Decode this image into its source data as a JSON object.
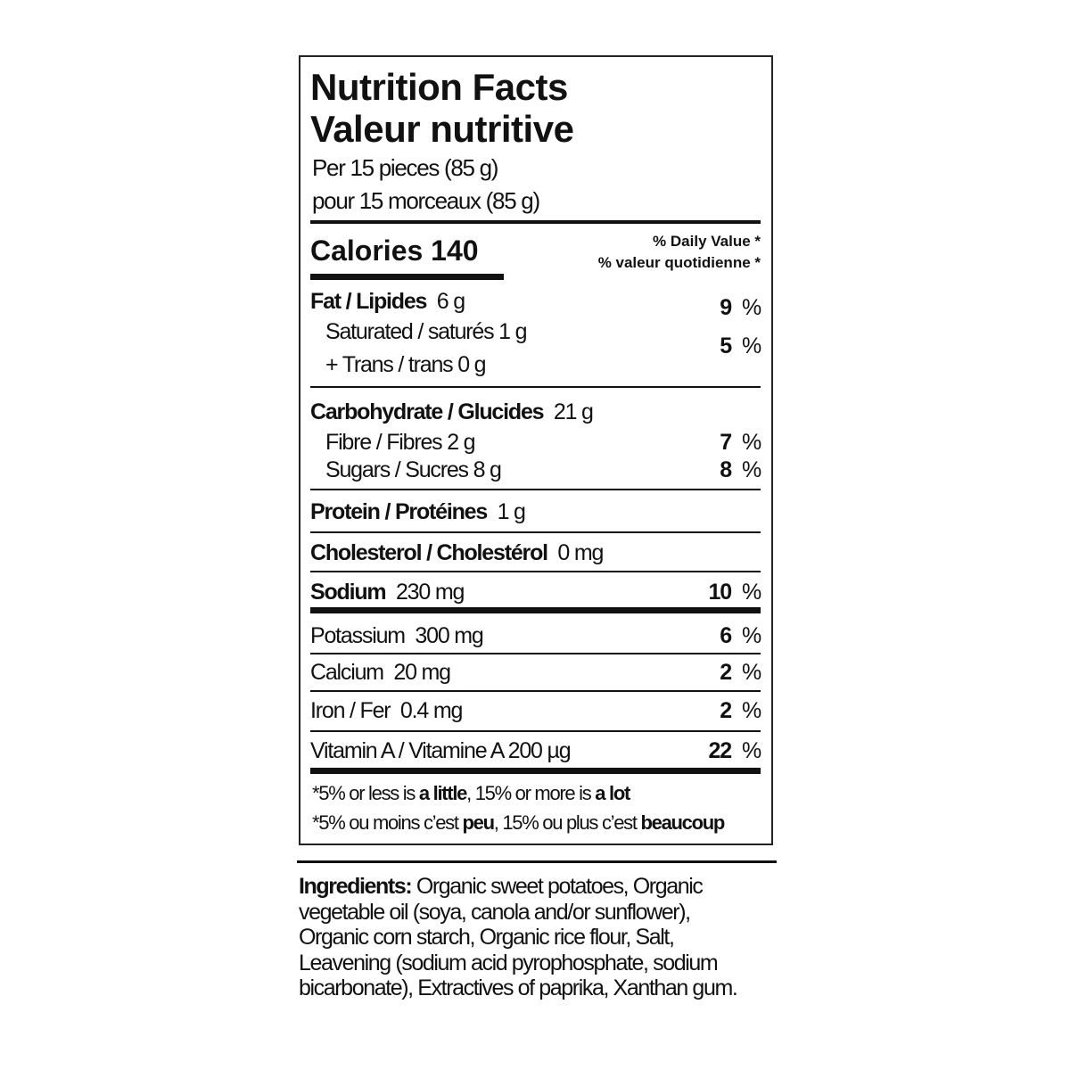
{
  "label": {
    "title_en": "Nutrition Facts",
    "title_fr": "Valeur nutritive",
    "serving_en": "Per 15 pieces (85 g)",
    "serving_fr": "pour 15 morceaux (85 g)",
    "calories": "Calories 140",
    "dv_en": "% Daily Value *",
    "dv_fr": "% valeur quotidienne *",
    "rows": [
      {
        "name": "Fat / Lipides",
        "amount": "6 g",
        "pct": "9",
        "unit": "%"
      },
      {
        "name": "Saturated / saturés 1 g",
        "pct": "5",
        "unit": "%"
      },
      {
        "name": "+ Trans / trans 0 g"
      },
      {
        "name": "Carbohydrate / Glucides",
        "amount": "21 g"
      },
      {
        "name": "Fibre / Fibres 2 g",
        "pct": "7",
        "unit": "%"
      },
      {
        "name": "Sugars / Sucres 8 g",
        "pct": "8",
        "unit": "%"
      },
      {
        "name": "Protein / Protéines",
        "amount": "1 g"
      },
      {
        "name": "Cholesterol / Cholestérol",
        "amount": "0 mg"
      },
      {
        "name": "Sodium",
        "amount": "230 mg",
        "pct": "10",
        "unit": "%"
      },
      {
        "name": "Potassium",
        "amount": "300 mg",
        "pct": "6",
        "unit": "%"
      },
      {
        "name": "Calcium",
        "amount": "20 mg",
        "pct": "2",
        "unit": "%"
      },
      {
        "name": "Iron / Fer",
        "amount": "0.4 mg",
        "pct": "2",
        "unit": "%"
      },
      {
        "name": "Vitamin A / Vitamine A 200 µg",
        "pct": "22",
        "unit": "%"
      }
    ],
    "footnote_en": {
      "a": "*5% or less is ",
      "b": "a little",
      "c": ", 15% or more is ",
      "d": "a lot"
    },
    "footnote_fr": {
      "a": "*5% ou moins c’est ",
      "b": "peu",
      "c": ", 15% ou plus c’est ",
      "d": "beaucoup"
    }
  },
  "ingredients": {
    "heading": "Ingredients:",
    "lines": [
      " Organic sweet potatoes, Organic",
      "vegetable oil (soya, canola and/or sunflower),",
      "Organic corn starch, Organic rice flour, Salt,",
      "Leavening (sodium acid pyrophosphate, sodium",
      "bicarbonate), Extractives of paprika, Xanthan gum."
    ]
  }
}
